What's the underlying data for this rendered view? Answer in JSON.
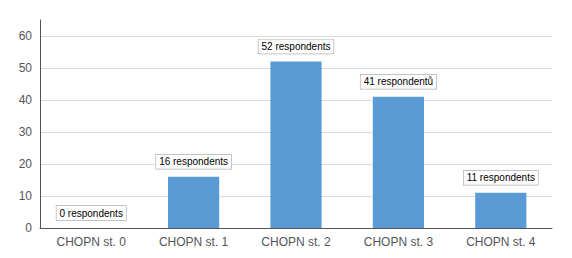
{
  "chart_data": {
    "type": "bar",
    "categories": [
      "CHOPN st. 0",
      "CHOPN st. 1",
      "CHOPN st. 2",
      "CHOPN st. 3",
      "CHOPN st. 4"
    ],
    "values": [
      0,
      16,
      52,
      41,
      11
    ],
    "value_labels": [
      "0 respondents",
      "16 respondents",
      "52 respondents",
      "41 respondentů",
      "11 respondents"
    ],
    "data_labels": true,
    "color": "#5b9bd5",
    "ylim": [
      0,
      65
    ],
    "yticks": [
      0,
      10,
      20,
      30,
      40,
      50,
      60
    ],
    "grid": true
  }
}
